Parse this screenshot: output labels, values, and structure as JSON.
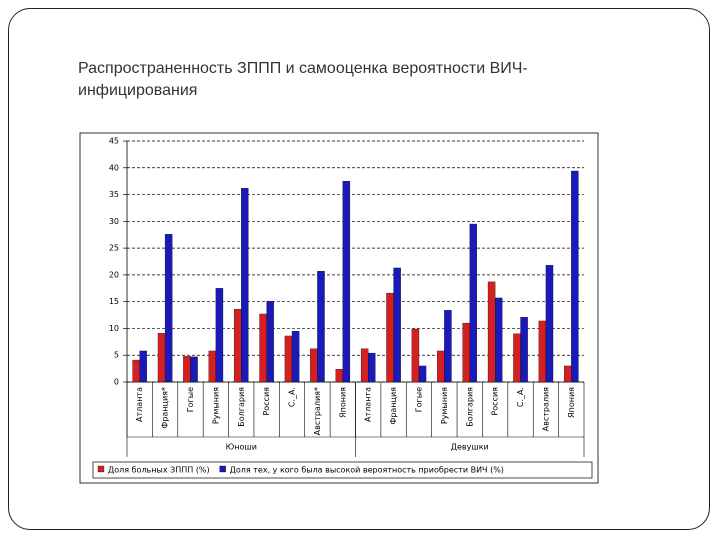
{
  "chart_data": {
    "type": "bar",
    "title": "Распространенность ЗППП и самооценка вероятности ВИЧ-инфицирования",
    "groups": [
      "Юноши",
      "Девушки"
    ],
    "categories": [
      "Атланта",
      "Франция*",
      "Гогые",
      "Румыния",
      "Болгария",
      "Россия",
      "С._А.",
      "Австралия*",
      "Япония",
      "Атланта",
      "Франция",
      "Гогые",
      "Румыния",
      "Болгария",
      "Россия",
      "С._А.",
      "Австралия",
      "Япония"
    ],
    "series": [
      {
        "name": "Доля больных ЗППП (%)",
        "color": "#d42020",
        "values": [
          4.1,
          9.1,
          4.8,
          5.8,
          13.6,
          12.7,
          8.6,
          6.2,
          2.4,
          6.2,
          16.6,
          9.9,
          5.8,
          11.0,
          18.7,
          9.0,
          11.4,
          3.0
        ]
      },
      {
        "name": "Доля тех, у кого была высокой вероятность приобрести ВИЧ (%)",
        "color": "#1a1ab8",
        "values": [
          5.8,
          27.6,
          4.7,
          17.5,
          36.2,
          15.1,
          9.5,
          20.7,
          37.5,
          5.4,
          21.3,
          3.0,
          13.4,
          29.5,
          15.7,
          12.1,
          21.8,
          39.4
        ]
      }
    ],
    "ylim": [
      0,
      45
    ],
    "yticks": [
      0,
      5,
      10,
      15,
      20,
      25,
      30,
      35,
      40,
      45
    ],
    "grid": true
  }
}
